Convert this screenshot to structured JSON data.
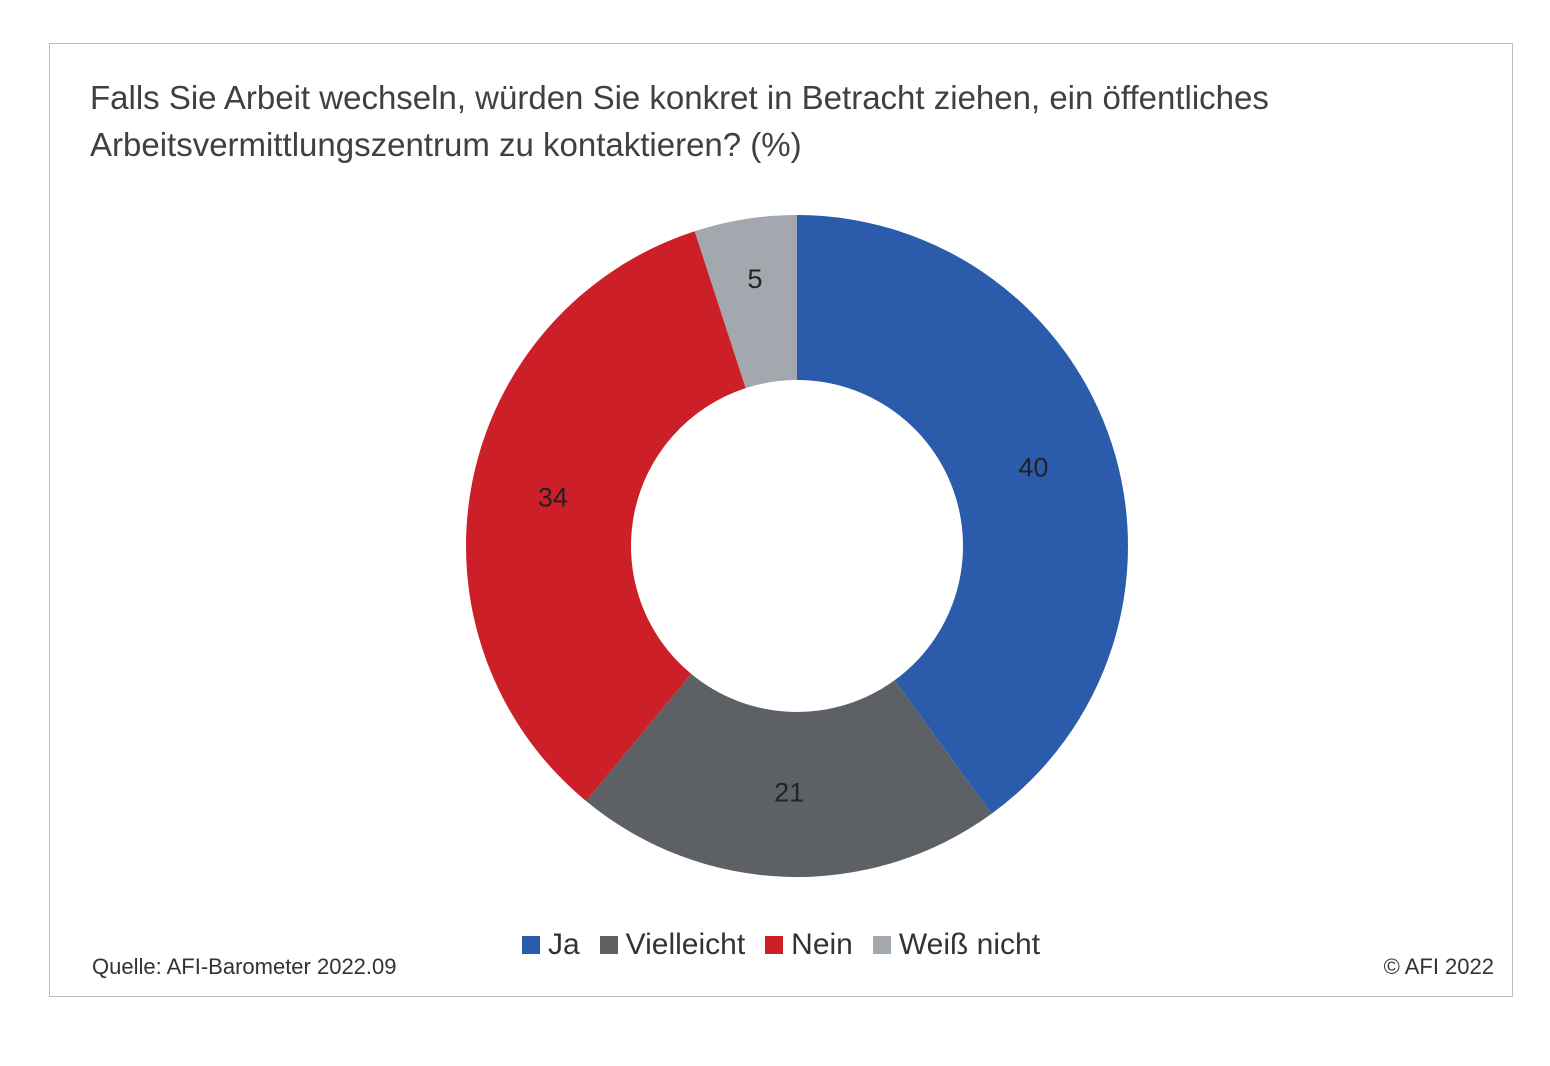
{
  "chart_data": {
    "type": "pie",
    "variant": "donut",
    "title": "Falls Sie Arbeit wechseln, würden Sie konkret in Betracht ziehen, ein öffentliches Arbeitsvermittlungszentrum zu kontaktieren? (%)",
    "categories": [
      "Ja",
      "Vielleicht",
      "Nein",
      "Weiß nicht"
    ],
    "values": [
      40,
      21,
      34,
      5
    ],
    "colors": [
      "#2b5cab",
      "#5d6166",
      "#cc1f27",
      "#a3a8ae"
    ],
    "legend_position": "bottom",
    "start_angle": "top, clockwise"
  },
  "footer": {
    "source": "Quelle: AFI-Barometer 2022.09",
    "copyright": "© AFI 2022"
  }
}
